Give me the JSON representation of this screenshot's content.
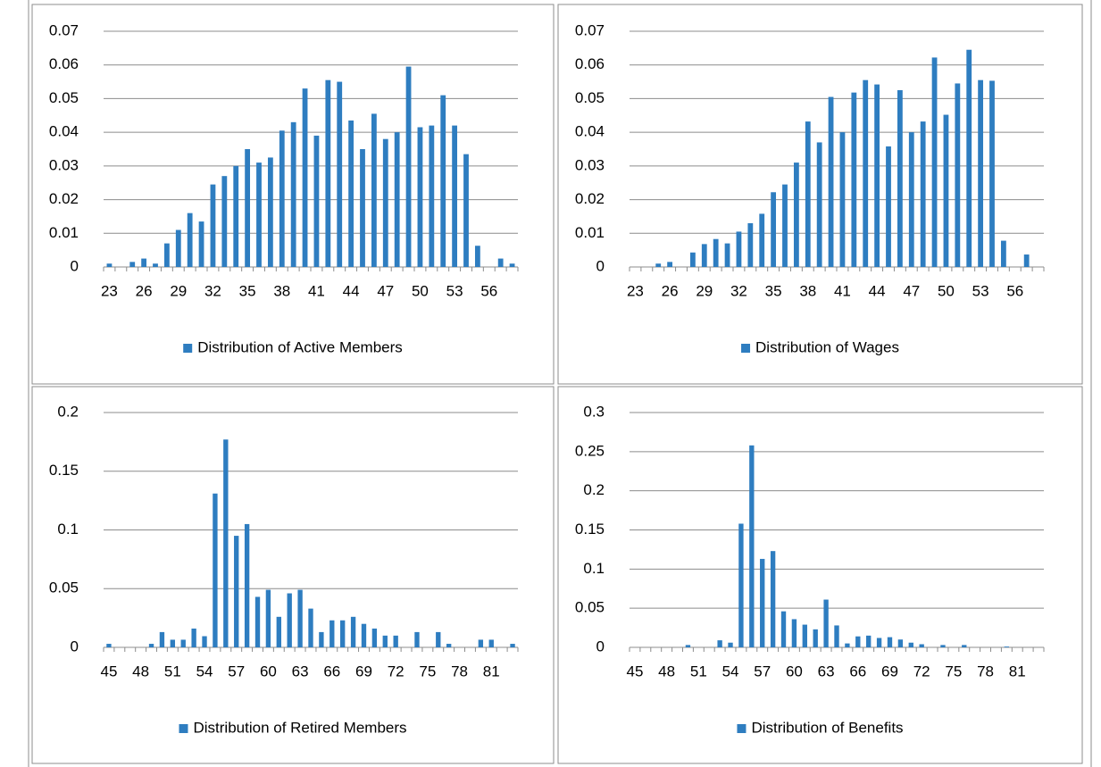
{
  "chart_data": [
    {
      "type": "bar",
      "categories": [
        "23",
        null,
        null,
        "26",
        null,
        null,
        "29",
        null,
        null,
        "32",
        null,
        null,
        "35",
        null,
        null,
        "38",
        null,
        null,
        "41",
        null,
        null,
        "44",
        null,
        null,
        "47",
        null,
        null,
        "50",
        null,
        null,
        "53",
        null,
        null,
        "56",
        null,
        null
      ],
      "series": [
        {
          "name": "Distribution of Active Members",
          "color": "#2e7dc0",
          "values": [
            0.001,
            0,
            0.0015,
            0.0025,
            0.001,
            0.007,
            0.011,
            0.016,
            0.0135,
            0.0245,
            0.027,
            0.03,
            0.035,
            0.031,
            0.0325,
            0.0405,
            0.043,
            0.053,
            0.039,
            0.0555,
            0.055,
            0.0435,
            0.035,
            0.0455,
            0.038,
            0.04,
            0.0595,
            0.0415,
            0.042,
            0.051,
            0.042,
            0.0335,
            0.0063,
            0,
            0.0025,
            0.001
          ]
        }
      ],
      "ylim": [
        0,
        0.07
      ],
      "yticks": [
        0,
        0.01,
        0.02,
        0.03,
        0.04,
        0.05,
        0.06,
        0.07
      ],
      "grid": true,
      "legend": "bottom"
    },
    {
      "type": "bar",
      "categories": [
        "23",
        null,
        null,
        "26",
        null,
        null,
        "29",
        null,
        null,
        "32",
        null,
        null,
        "35",
        null,
        null,
        "38",
        null,
        null,
        "41",
        null,
        null,
        "44",
        null,
        null,
        "47",
        null,
        null,
        "50",
        null,
        null,
        "53",
        null,
        null,
        "56",
        null,
        null
      ],
      "series": [
        {
          "name": "Distribution of Wages",
          "color": "#2e7dc0",
          "values": [
            0,
            0,
            0.001,
            0.0015,
            0,
            0.0043,
            0.0068,
            0.0083,
            0.007,
            0.0105,
            0.013,
            0.0158,
            0.0222,
            0.0245,
            0.031,
            0.0432,
            0.037,
            0.0505,
            0.04,
            0.0518,
            0.0555,
            0.0542,
            0.0358,
            0.0525,
            0.04,
            0.0432,
            0.0622,
            0.0452,
            0.0545,
            0.0645,
            0.0555,
            0.0553,
            0.0078,
            0,
            0.0037,
            0
          ]
        }
      ],
      "ylim": [
        0,
        0.07
      ],
      "yticks": [
        0,
        0.01,
        0.02,
        0.03,
        0.04,
        0.05,
        0.06,
        0.07
      ],
      "grid": true,
      "legend": "bottom"
    },
    {
      "type": "bar",
      "categories": [
        "45",
        null,
        null,
        "48",
        null,
        null,
        "51",
        null,
        null,
        "54",
        null,
        null,
        "57",
        null,
        null,
        "60",
        null,
        null,
        "63",
        null,
        null,
        "66",
        null,
        null,
        "69",
        null,
        null,
        "72",
        null,
        null,
        "75",
        null,
        null,
        "78",
        null,
        null,
        "81",
        null,
        null
      ],
      "series": [
        {
          "name": "Distribution of Retired Members",
          "color": "#2e7dc0",
          "values": [
            0.003,
            0,
            0,
            0,
            0.003,
            0.013,
            0.0065,
            0.0065,
            0.016,
            0.0095,
            0.131,
            0.177,
            0.095,
            0.105,
            0.043,
            0.049,
            0.026,
            0.046,
            0.049,
            0.033,
            0.013,
            0.023,
            0.023,
            0.026,
            0.02,
            0.016,
            0.01,
            0.01,
            0,
            0.013,
            0,
            0.013,
            0.003,
            0,
            0,
            0.0065,
            0.0065,
            0,
            0.003
          ]
        }
      ],
      "ylim": [
        0,
        0.2
      ],
      "yticks": [
        0,
        0.05,
        0.1,
        0.15,
        0.2
      ],
      "grid": true,
      "legend": "bottom"
    },
    {
      "type": "bar",
      "categories": [
        "45",
        null,
        null,
        "48",
        null,
        null,
        "51",
        null,
        null,
        "54",
        null,
        null,
        "57",
        null,
        null,
        "60",
        null,
        null,
        "63",
        null,
        null,
        "66",
        null,
        null,
        "69",
        null,
        null,
        "72",
        null,
        null,
        "75",
        null,
        null,
        "78",
        null,
        null,
        "81",
        null,
        null
      ],
      "series": [
        {
          "name": "Distribution of Benefits",
          "color": "#2e7dc0",
          "values": [
            0,
            0,
            0,
            0,
            0,
            0.003,
            0,
            0,
            0.009,
            0.006,
            0.158,
            0.258,
            0.113,
            0.123,
            0.046,
            0.036,
            0.029,
            0.023,
            0.061,
            0.028,
            0.005,
            0.014,
            0.015,
            0.012,
            0.013,
            0.01,
            0.006,
            0.004,
            0,
            0.003,
            0,
            0.003,
            0,
            0,
            0,
            0.001,
            0,
            0,
            0
          ]
        }
      ],
      "ylim": [
        0,
        0.3
      ],
      "yticks": [
        0,
        0.05,
        0.1,
        0.15,
        0.2,
        0.25,
        0.3
      ],
      "grid": true,
      "legend": "bottom"
    }
  ]
}
